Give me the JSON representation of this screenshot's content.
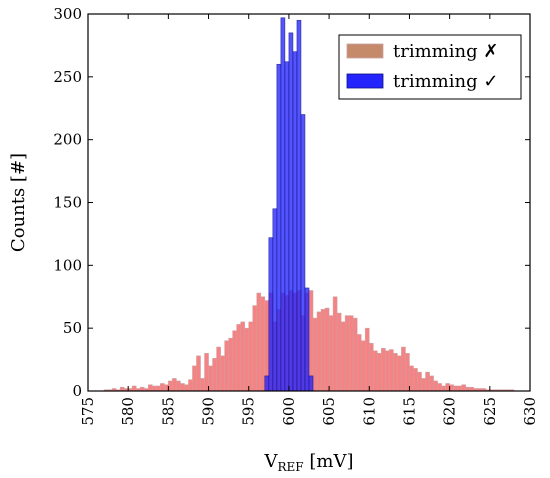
{
  "chart_data": {
    "type": "bar",
    "title": "",
    "xlabel": "V",
    "xlabel_sub": "REF",
    "xlabel_unit": " [mV]",
    "ylabel": "Counts [#]",
    "xlim": [
      575,
      630
    ],
    "ylim": [
      0,
      300
    ],
    "xticks": [
      575,
      580,
      585,
      590,
      595,
      600,
      605,
      610,
      615,
      620,
      625,
      630
    ],
    "yticks": [
      0,
      50,
      100,
      150,
      200,
      250,
      300
    ],
    "bin_width": 0.5,
    "legend_position": "top-right",
    "series": [
      {
        "name": "trimming ✗",
        "color": "#f47c7c",
        "edge": "#c8a0a8",
        "x": [
          577,
          577.5,
          578,
          578.5,
          579,
          579.5,
          580,
          580.5,
          581,
          581.5,
          582,
          582.5,
          583,
          583.5,
          584,
          584.5,
          585,
          585.5,
          586,
          586.5,
          587,
          587.5,
          588,
          588.5,
          589,
          589.5,
          590,
          590.5,
          591,
          591.5,
          592,
          592.5,
          593,
          593.5,
          594,
          594.5,
          595,
          595.5,
          596,
          596.5,
          597,
          597.5,
          598,
          598.5,
          599,
          599.5,
          600,
          600.5,
          601,
          601.5,
          602,
          602.5,
          603,
          603.5,
          604,
          604.5,
          605,
          605.5,
          606,
          606.5,
          607,
          607.5,
          608,
          608.5,
          609,
          609.5,
          610,
          610.5,
          611,
          611.5,
          612,
          612.5,
          613,
          613.5,
          614,
          614.5,
          615,
          615.5,
          616,
          616.5,
          617,
          617.5,
          618,
          618.5,
          619,
          619.5,
          620,
          620.5,
          621,
          621.5,
          622,
          622.5,
          623,
          623.5,
          624,
          624.5,
          625,
          625.5,
          626,
          626.5,
          627,
          627.5
        ],
        "values": [
          1,
          1,
          2,
          1,
          3,
          2,
          2,
          4,
          2,
          3,
          2,
          5,
          4,
          4,
          6,
          5,
          8,
          10,
          8,
          6,
          5,
          9,
          20,
          28,
          10,
          30,
          20,
          26,
          35,
          28,
          40,
          42,
          48,
          53,
          55,
          50,
          55,
          68,
          78,
          75,
          72,
          78,
          55,
          65,
          78,
          76,
          80,
          78,
          80,
          60,
          78,
          80,
          58,
          63,
          65,
          66,
          60,
          75,
          62,
          55,
          60,
          60,
          58,
          45,
          40,
          50,
          38,
          32,
          30,
          34,
          32,
          33,
          30,
          28,
          35,
          30,
          20,
          18,
          15,
          10,
          15,
          12,
          8,
          6,
          4,
          6,
          5,
          4,
          4,
          5,
          3,
          3,
          2,
          2,
          2,
          1,
          1,
          1,
          1,
          1,
          1,
          1
        ]
      },
      {
        "name": "trimming ✓",
        "color": "#2424ff",
        "edge": "#101080",
        "x": [
          597,
          597.5,
          598,
          598.5,
          599,
          599.5,
          600,
          600.5,
          601,
          601.5,
          602,
          602.5
        ],
        "values": [
          12,
          122,
          145,
          260,
          297,
          262,
          285,
          270,
          295,
          220,
          82,
          12
        ]
      }
    ]
  }
}
